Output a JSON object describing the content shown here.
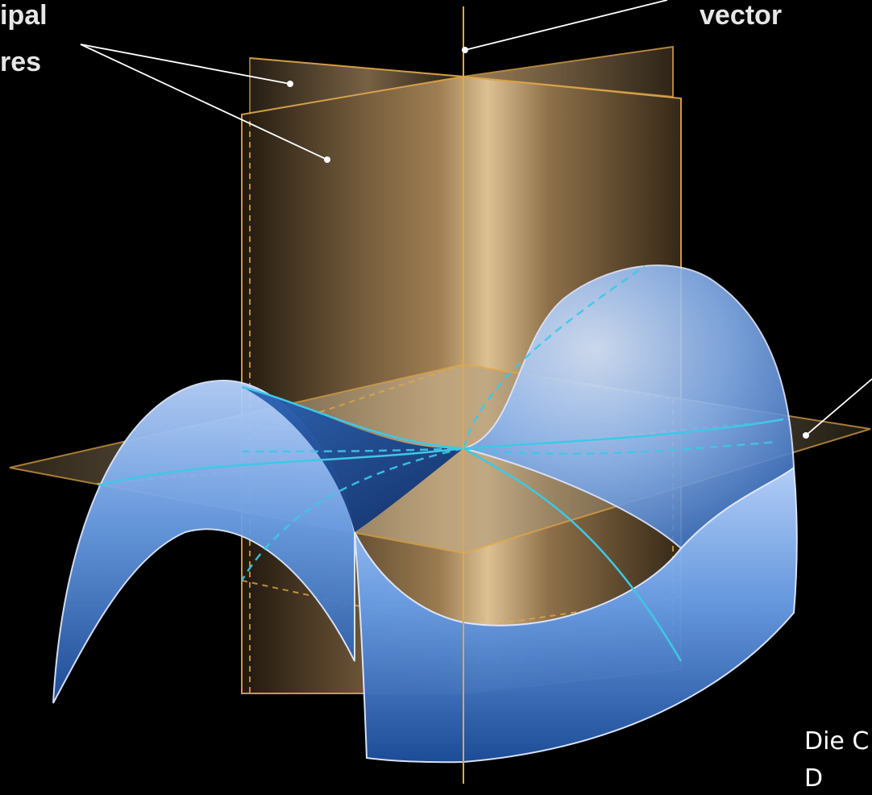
{
  "labels": {
    "planes_line1": "ipal",
    "planes_line2": "res",
    "normal": "vector"
  },
  "caption": {
    "line1": "Die C",
    "line2": "D"
  },
  "colors": {
    "background": "#000000",
    "plane_fill": "#c8a06a",
    "plane_edge": "#e0a84a",
    "surface": "#6a9ee6",
    "surface_dark": "#0e3a86",
    "curvature_curve": "#3ec8e6",
    "leader": "#ffffff"
  }
}
